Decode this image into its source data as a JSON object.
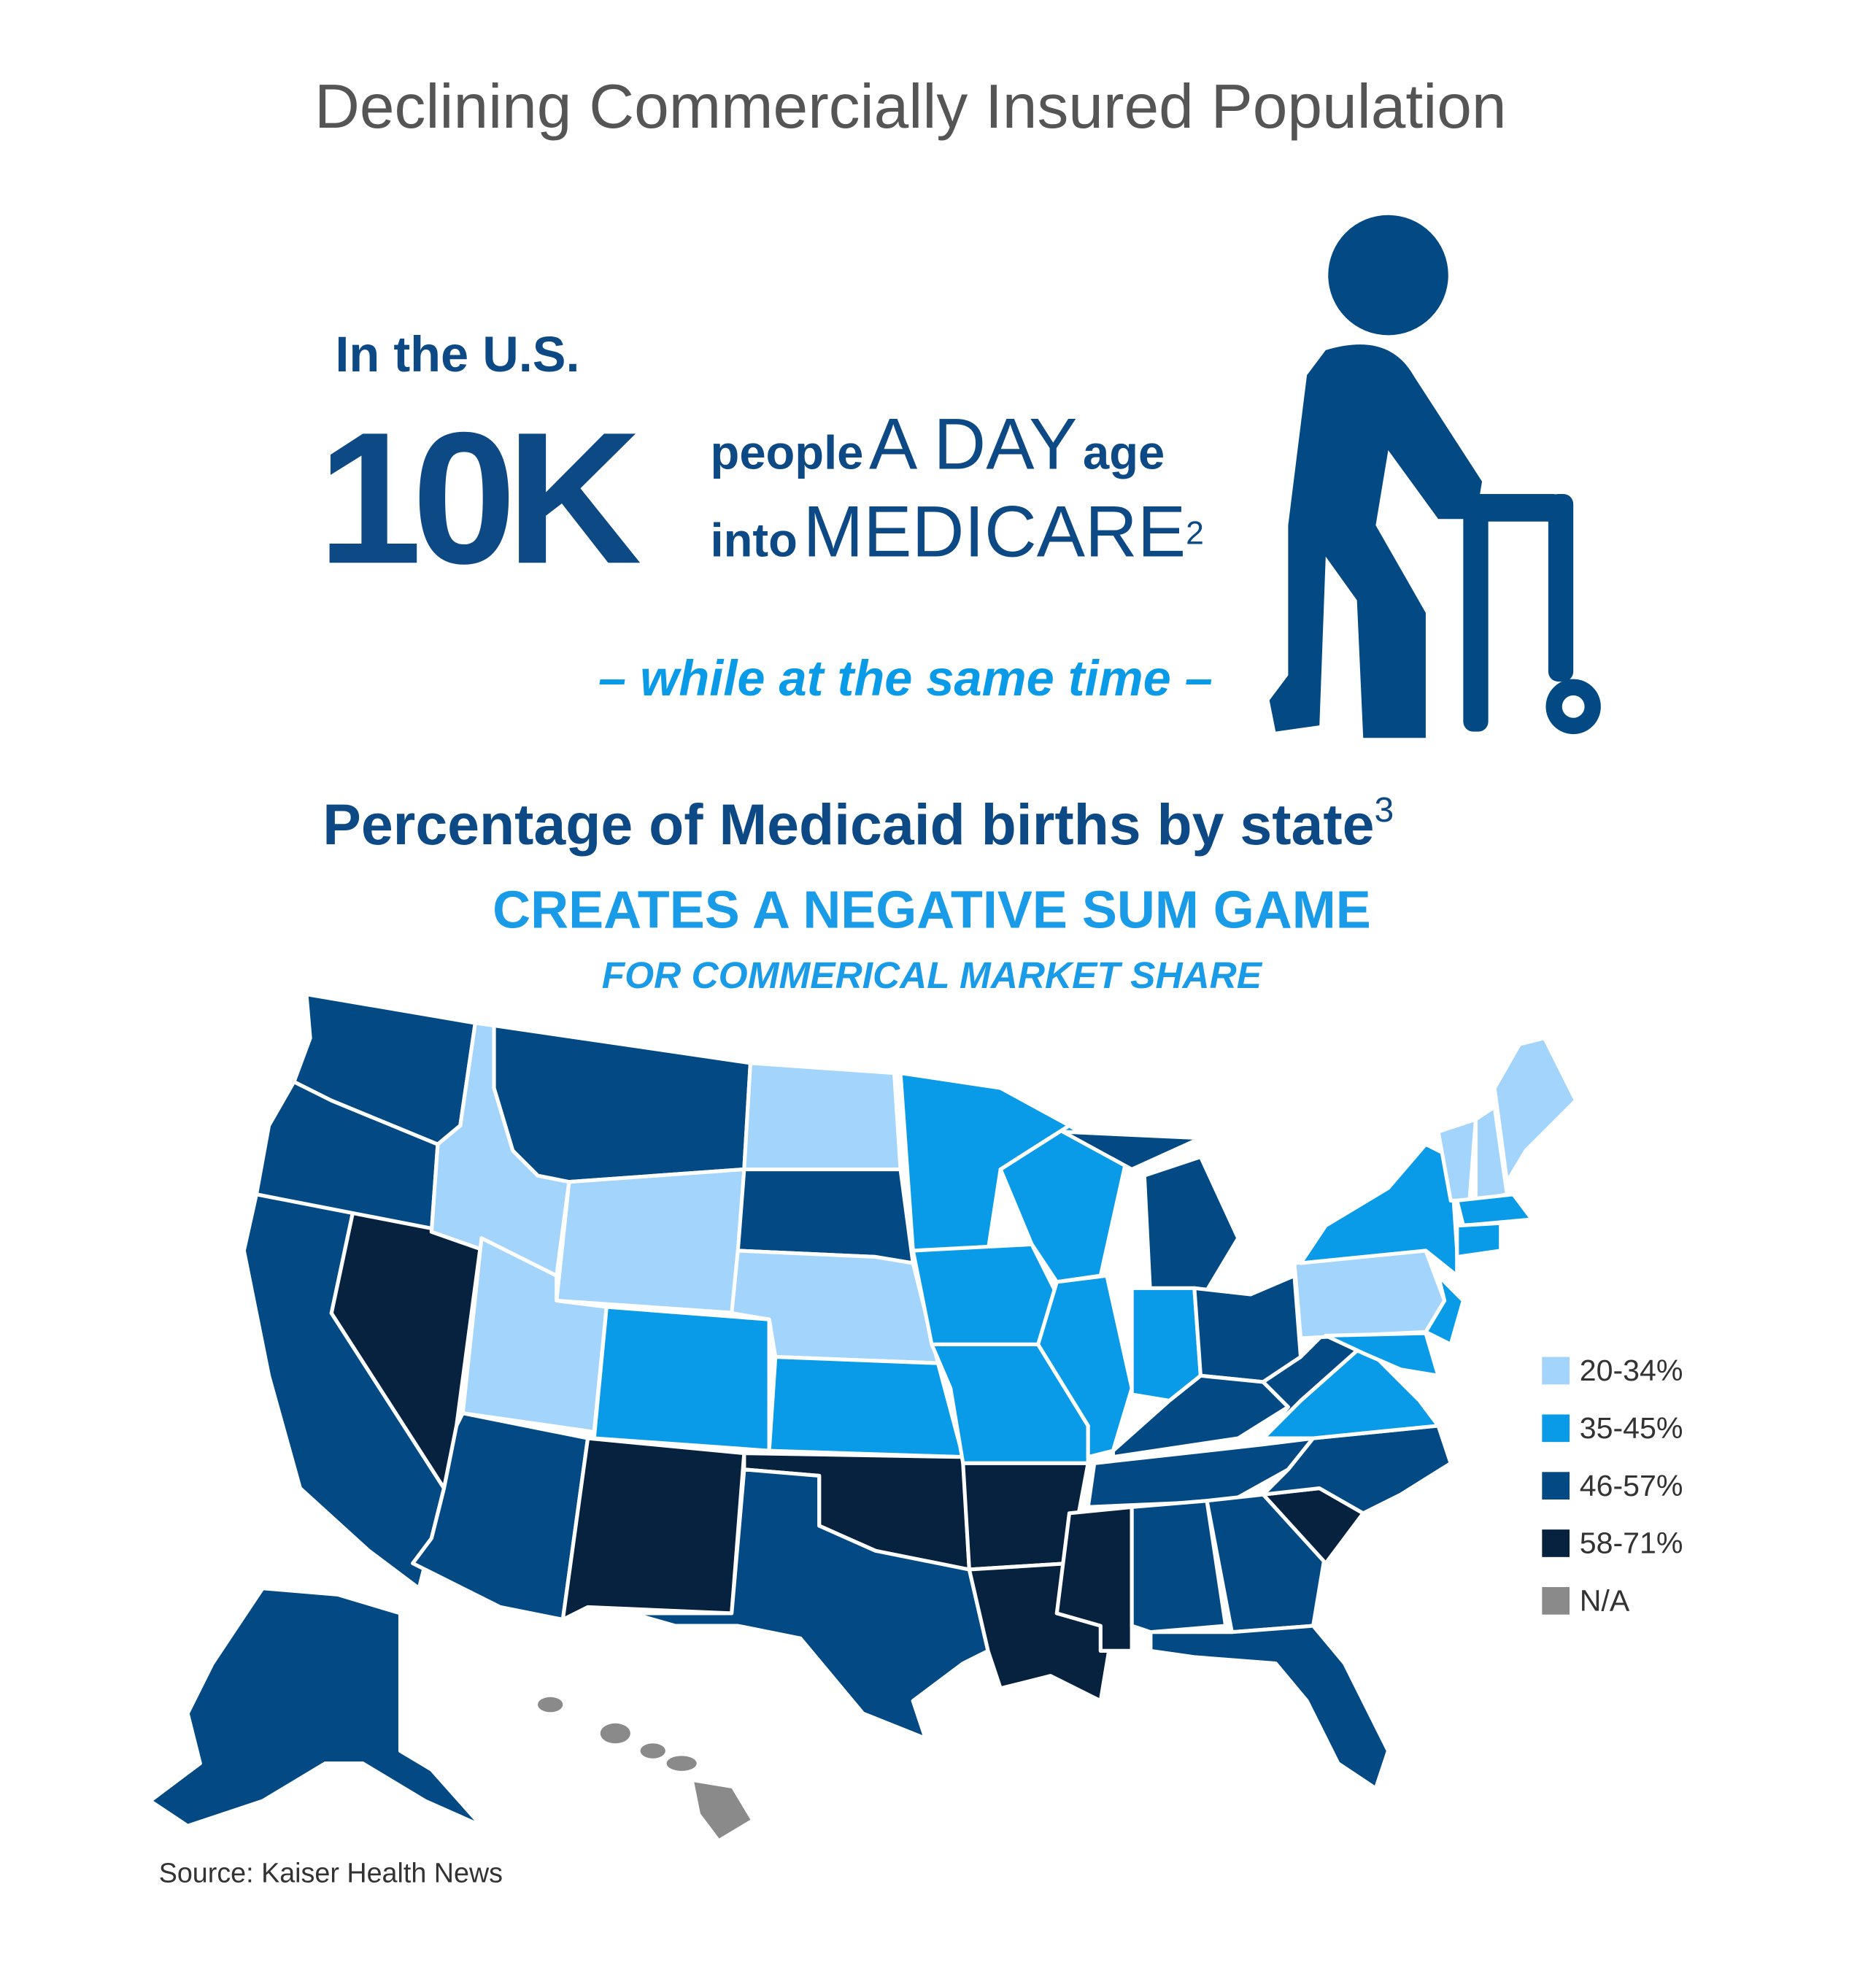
{
  "header": {
    "title": "Declining Commercially Insured Population"
  },
  "headline": {
    "lead": "In the U.S.",
    "number": "10K",
    "people": "people",
    "a_day": "A DAY",
    "age": "age",
    "into": "into",
    "medicare": "MEDICARE",
    "medicare_note": "2",
    "connector": "– while at the same time –"
  },
  "map": {
    "title": "Percentage of Medicaid births by state",
    "title_note": "3",
    "subtitle": "CREATES A NEGATIVE SUM GAME",
    "subtitle2": "FOR COMMERICAL MARKET SHARE",
    "legend": [
      {
        "label": "20-34%",
        "color": "#a3d4fb"
      },
      {
        "label": "35-45%",
        "color": "#0a9be8"
      },
      {
        "label": "46-57%",
        "color": "#034a85"
      },
      {
        "label": "58-71%",
        "color": "#06223f"
      },
      {
        "label": "N/A",
        "color": "#8a8a8a"
      }
    ]
  },
  "source": "Source: Kaiser Health News"
}
